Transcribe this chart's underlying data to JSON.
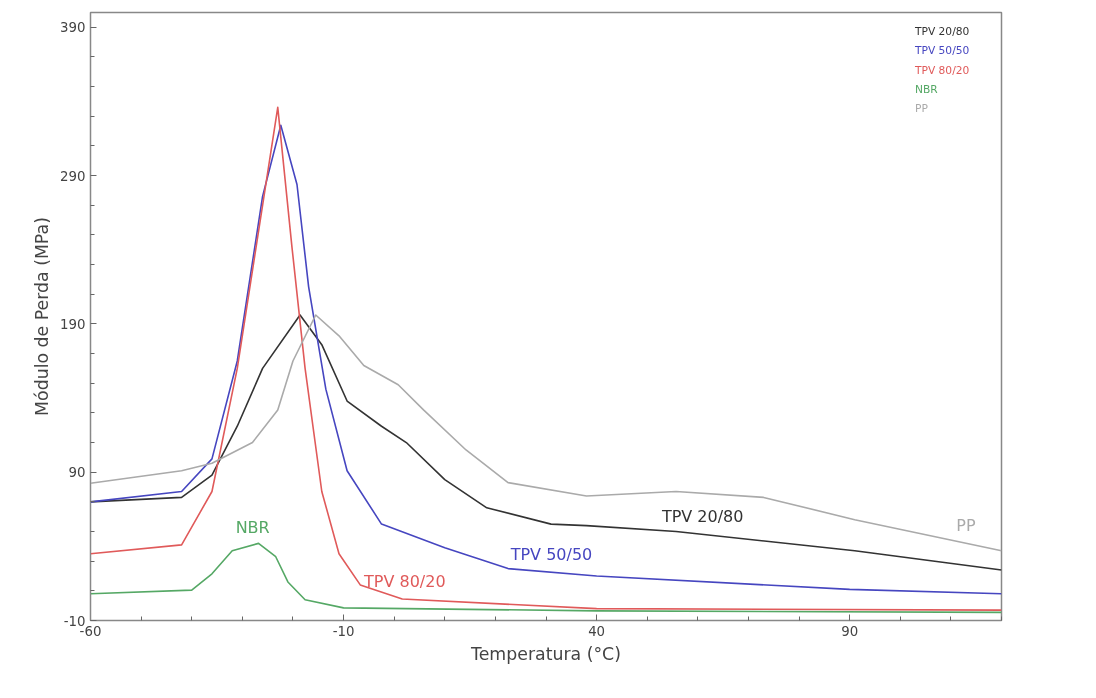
{
  "chart_data": {
    "type": "line",
    "xlabel": "Temperatura (°C)",
    "ylabel": "Módulo de Perda (MPa)",
    "xlim": [
      -60,
      120
    ],
    "ylim": [
      -10,
      400
    ],
    "xticks": [
      -60,
      -10,
      40,
      90
    ],
    "yticks": [
      -10,
      90,
      190,
      290,
      390
    ],
    "grid": false,
    "legend": "top right",
    "marker": "none",
    "line_style": "solid",
    "series": [
      {
        "name": "TPV 20/80",
        "color": "#333333",
        "x": [
          -60,
          -42,
          -36,
          -31,
          -26,
          -18.6,
          -14.3,
          -9.3,
          -2.5,
          2.4,
          10,
          18.3,
          31,
          38,
          55.7,
          91,
          120
        ],
        "values": [
          70,
          73,
          88,
          121,
          160,
          196,
          176,
          138,
          121,
          110,
          85,
          66,
          55,
          54,
          50,
          37,
          24
        ]
      },
      {
        "name": "TPV 50/50",
        "color": "#4646c0",
        "x": [
          -60,
          -42,
          -36,
          -31,
          -26,
          -22.4,
          -19.2,
          -16.9,
          -13.5,
          -9.3,
          -2.5,
          10,
          22.5,
          40,
          90,
          120
        ],
        "values": [
          70,
          77,
          99,
          165,
          276,
          324,
          284,
          215,
          146,
          91,
          55,
          39,
          25,
          20,
          11,
          8
        ]
      },
      {
        "name": "TPV 80/20",
        "color": "#e05a5a",
        "x": [
          -60,
          -42,
          -36,
          -31,
          -26,
          -23,
          -20.2,
          -17.6,
          -14.3,
          -10.9,
          -6.7,
          1.6,
          40,
          120
        ],
        "values": [
          35,
          41,
          77,
          160,
          270,
          336,
          242,
          160,
          77,
          35,
          14,
          4.5,
          -2,
          -3
        ]
      },
      {
        "name": "NBR",
        "color": "#55a865",
        "x": [
          -60,
          -40,
          -36,
          -32,
          -26.8,
          -23.4,
          -21,
          -17.6,
          -10,
          40,
          120
        ],
        "values": [
          8,
          10.5,
          21.5,
          37,
          42,
          33,
          16,
          4,
          -1.5,
          -3.5,
          -4.5
        ]
      },
      {
        "name": "PP",
        "color": "#aaaaaa",
        "x": [
          -60,
          -42,
          -36,
          -28,
          -23,
          -20,
          -15.5,
          -10.9,
          -6,
          0.8,
          5.8,
          14.2,
          22.5,
          38,
          55.7,
          73,
          91,
          120
        ],
        "values": [
          82.5,
          91,
          96,
          110,
          132,
          165,
          196,
          182,
          162,
          149,
          132,
          105,
          83,
          74,
          77,
          73,
          58,
          37
        ]
      }
    ],
    "annotations": [
      "TPV 20/80",
      "TPV 50/50",
      "TPV 80/20",
      "NBR",
      "PP"
    ]
  }
}
